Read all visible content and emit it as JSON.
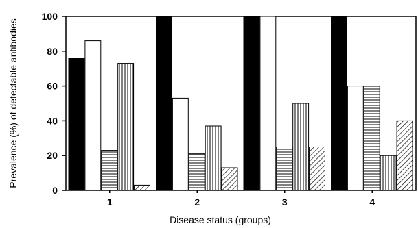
{
  "chart_data": {
    "type": "bar",
    "xlabel": "Disease status (groups)",
    "ylabel": "Prevalence (%) of detectable antibodies",
    "ylim": [
      0,
      100
    ],
    "yticks": [
      0,
      20,
      40,
      60,
      80,
      100
    ],
    "categories": [
      "1",
      "2",
      "3",
      "4"
    ],
    "grid": false,
    "legend": "none",
    "series": [
      {
        "pattern": "solid-black",
        "values": [
          76,
          100,
          100,
          100
        ]
      },
      {
        "pattern": "white",
        "values": [
          86,
          53,
          100,
          60
        ]
      },
      {
        "pattern": "horizontal-lines",
        "values": [
          23,
          21,
          25,
          60
        ]
      },
      {
        "pattern": "vertical-lines",
        "values": [
          73,
          37,
          50,
          20
        ]
      },
      {
        "pattern": "diagonal-lines",
        "values": [
          3,
          13,
          25,
          40
        ]
      }
    ]
  }
}
